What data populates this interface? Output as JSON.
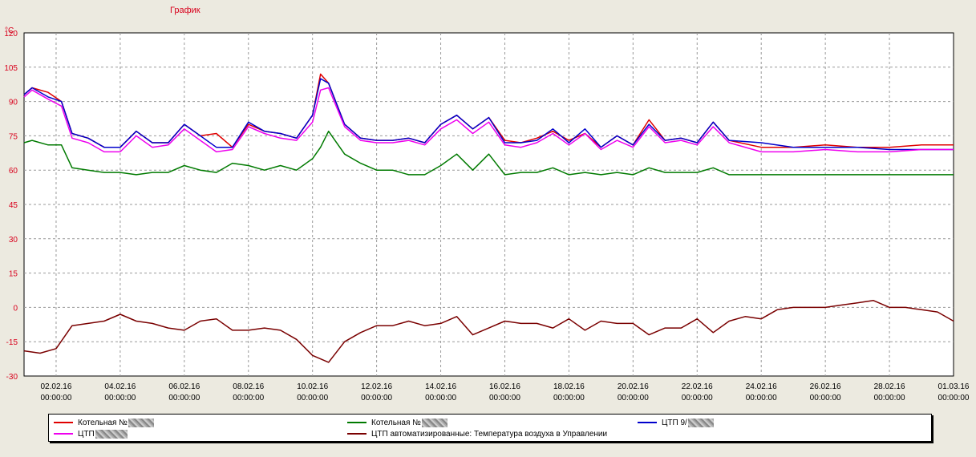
{
  "header": {
    "title": "График",
    "unit": "°С"
  },
  "chart_data": {
    "type": "line",
    "title": "График",
    "ylabel": "°С",
    "ylim": [
      -30,
      120
    ],
    "yticks": [
      120,
      105,
      90,
      75,
      60,
      45,
      30,
      15,
      0,
      -15,
      -30
    ],
    "xlim": [
      "01.02.16 00:00",
      "01.03.16 00:00"
    ],
    "xticks": [
      {
        "date": "02.02.16",
        "time": "00:00:00"
      },
      {
        "date": "04.02.16",
        "time": "00:00:00"
      },
      {
        "date": "06.02.16",
        "time": "00:00:00"
      },
      {
        "date": "08.02.16",
        "time": "00:00:00"
      },
      {
        "date": "10.02.16",
        "time": "00:00:00"
      },
      {
        "date": "12.02.16",
        "time": "00:00:00"
      },
      {
        "date": "14.02.16",
        "time": "00:00:00"
      },
      {
        "date": "16.02.16",
        "time": "00:00:00"
      },
      {
        "date": "18.02.16",
        "time": "00:00:00"
      },
      {
        "date": "20.02.16",
        "time": "00:00:00"
      },
      {
        "date": "22.02.16",
        "time": "00:00:00"
      },
      {
        "date": "24.02.16",
        "time": "00:00:00"
      },
      {
        "date": "26.02.16",
        "time": "00:00:00"
      },
      {
        "date": "28.02.16",
        "time": "00:00:00"
      },
      {
        "date": "01.03.16",
        "time": "00:00:00"
      }
    ],
    "grid": true,
    "legend_position": "bottom",
    "series": [
      {
        "name": "Котельная №",
        "color": "#e00000",
        "x": [
          "01.02.16 00:00",
          "01.02.16 06:00",
          "01.02.16 18:00",
          "02.02.16 04:00",
          "02.02.16 12:00",
          "03.02.16 00:00",
          "03.02.16 12:00",
          "04.02.16 00:00",
          "04.02.16 12:00",
          "05.02.16 00:00",
          "05.02.16 12:00",
          "06.02.16 00:00",
          "06.02.16 12:00",
          "07.02.16 00:00",
          "07.02.16 12:00",
          "08.02.16 00:00",
          "08.02.16 12:00",
          "09.02.16 00:00",
          "09.02.16 12:00",
          "10.02.16 00:00",
          "10.02.16 06:00",
          "10.02.16 12:00",
          "11.02.16 00:00",
          "11.02.16 12:00",
          "12.02.16 00:00",
          "12.02.16 12:00",
          "13.02.16 00:00",
          "13.02.16 12:00",
          "14.02.16 00:00",
          "14.02.16 12:00",
          "15.02.16 00:00",
          "15.02.16 12:00",
          "16.02.16 00:00",
          "16.02.16 12:00",
          "17.02.16 00:00",
          "17.02.16 12:00",
          "18.02.16 00:00",
          "18.02.16 12:00",
          "19.02.16 00:00",
          "19.02.16 12:00",
          "20.02.16 00:00",
          "20.02.16 12:00",
          "21.02.16 00:00",
          "21.02.16 12:00",
          "22.02.16 00:00",
          "22.02.16 12:00",
          "23.02.16 00:00",
          "24.02.16 00:00",
          "25.02.16 00:00",
          "26.02.16 00:00",
          "27.02.16 00:00",
          "28.02.16 00:00",
          "29.02.16 00:00",
          "01.03.16 00:00"
        ],
        "y": [
          93,
          96,
          94,
          90,
          76,
          74,
          70,
          70,
          77,
          72,
          72,
          80,
          75,
          76,
          70,
          80,
          77,
          76,
          74,
          84,
          102,
          98,
          80,
          74,
          73,
          73,
          74,
          72,
          80,
          84,
          78,
          83,
          73,
          72,
          74,
          77,
          73,
          76,
          70,
          75,
          71,
          82,
          73,
          74,
          72,
          81,
          73,
          70,
          70,
          71,
          70,
          70,
          71,
          71
        ]
      },
      {
        "name": "Котельная №",
        "color": "#007a00",
        "x": [
          "01.02.16 00:00",
          "01.02.16 06:00",
          "01.02.16 18:00",
          "02.02.16 04:00",
          "02.02.16 12:00",
          "03.02.16 00:00",
          "03.02.16 12:00",
          "04.02.16 00:00",
          "04.02.16 12:00",
          "05.02.16 00:00",
          "05.02.16 12:00",
          "06.02.16 00:00",
          "06.02.16 12:00",
          "07.02.16 00:00",
          "07.02.16 12:00",
          "08.02.16 00:00",
          "08.02.16 12:00",
          "09.02.16 00:00",
          "09.02.16 12:00",
          "10.02.16 00:00",
          "10.02.16 06:00",
          "10.02.16 12:00",
          "11.02.16 00:00",
          "11.02.16 12:00",
          "12.02.16 00:00",
          "12.02.16 12:00",
          "13.02.16 00:00",
          "13.02.16 12:00",
          "14.02.16 00:00",
          "14.02.16 12:00",
          "15.02.16 00:00",
          "15.02.16 12:00",
          "16.02.16 00:00",
          "16.02.16 12:00",
          "17.02.16 00:00",
          "17.02.16 12:00",
          "18.02.16 00:00",
          "18.02.16 12:00",
          "19.02.16 00:00",
          "19.02.16 12:00",
          "20.02.16 00:00",
          "20.02.16 12:00",
          "21.02.16 00:00",
          "21.02.16 12:00",
          "22.02.16 00:00",
          "22.02.16 12:00",
          "23.02.16 00:00",
          "24.02.16 00:00",
          "25.02.16 00:00",
          "26.02.16 00:00",
          "27.02.16 00:00",
          "28.02.16 00:00",
          "29.02.16 00:00",
          "01.03.16 00:00"
        ],
        "y": [
          72,
          73,
          71,
          71,
          61,
          60,
          59,
          59,
          58,
          59,
          59,
          62,
          60,
          59,
          63,
          62,
          60,
          62,
          60,
          65,
          70,
          77,
          67,
          63,
          60,
          60,
          58,
          58,
          62,
          67,
          60,
          67,
          58,
          59,
          59,
          61,
          58,
          59,
          58,
          59,
          58,
          61,
          59,
          59,
          59,
          61,
          58,
          58,
          58,
          58,
          58,
          58,
          58,
          58
        ]
      },
      {
        "name": "ЦТП  9/",
        "color": "#0000cc",
        "x": [
          "01.02.16 00:00",
          "01.02.16 06:00",
          "01.02.16 18:00",
          "02.02.16 04:00",
          "02.02.16 12:00",
          "03.02.16 00:00",
          "03.02.16 12:00",
          "04.02.16 00:00",
          "04.02.16 12:00",
          "05.02.16 00:00",
          "05.02.16 12:00",
          "06.02.16 00:00",
          "06.02.16 12:00",
          "07.02.16 00:00",
          "07.02.16 12:00",
          "08.02.16 00:00",
          "08.02.16 12:00",
          "09.02.16 00:00",
          "09.02.16 12:00",
          "10.02.16 00:00",
          "10.02.16 06:00",
          "10.02.16 12:00",
          "11.02.16 00:00",
          "11.02.16 12:00",
          "12.02.16 00:00",
          "12.02.16 12:00",
          "13.02.16 00:00",
          "13.02.16 12:00",
          "14.02.16 00:00",
          "14.02.16 12:00",
          "15.02.16 00:00",
          "15.02.16 12:00",
          "16.02.16 00:00",
          "16.02.16 12:00",
          "17.02.16 00:00",
          "17.02.16 12:00",
          "18.02.16 00:00",
          "18.02.16 12:00",
          "19.02.16 00:00",
          "19.02.16 12:00",
          "20.02.16 00:00",
          "20.02.16 12:00",
          "21.02.16 00:00",
          "21.02.16 12:00",
          "22.02.16 00:00",
          "22.02.16 12:00",
          "23.02.16 00:00",
          "24.02.16 00:00",
          "25.02.16 00:00",
          "26.02.16 00:00",
          "27.02.16 00:00",
          "28.02.16 00:00",
          "29.02.16 00:00",
          "01.03.16 00:00"
        ],
        "y": [
          93,
          96,
          92,
          90,
          76,
          74,
          70,
          70,
          77,
          72,
          72,
          80,
          75,
          70,
          70,
          81,
          77,
          76,
          74,
          84,
          100,
          98,
          80,
          74,
          73,
          73,
          74,
          72,
          80,
          84,
          78,
          83,
          72,
          72,
          73,
          78,
          72,
          78,
          70,
          75,
          71,
          80,
          73,
          74,
          72,
          81,
          73,
          72,
          70,
          70,
          70,
          69,
          69,
          69
        ]
      },
      {
        "name": "ЦТП ",
        "color": "#ee00ee",
        "x": [
          "01.02.16 00:00",
          "01.02.16 06:00",
          "01.02.16 18:00",
          "02.02.16 04:00",
          "02.02.16 12:00",
          "03.02.16 00:00",
          "03.02.16 12:00",
          "04.02.16 00:00",
          "04.02.16 12:00",
          "05.02.16 00:00",
          "05.02.16 12:00",
          "06.02.16 00:00",
          "06.02.16 12:00",
          "07.02.16 00:00",
          "07.02.16 12:00",
          "08.02.16 00:00",
          "08.02.16 12:00",
          "09.02.16 00:00",
          "09.02.16 12:00",
          "10.02.16 00:00",
          "10.02.16 06:00",
          "10.02.16 12:00",
          "11.02.16 00:00",
          "11.02.16 12:00",
          "12.02.16 00:00",
          "12.02.16 12:00",
          "13.02.16 00:00",
          "13.02.16 12:00",
          "14.02.16 00:00",
          "14.02.16 12:00",
          "15.02.16 00:00",
          "15.02.16 12:00",
          "16.02.16 00:00",
          "16.02.16 12:00",
          "17.02.16 00:00",
          "17.02.16 12:00",
          "18.02.16 00:00",
          "18.02.16 12:00",
          "19.02.16 00:00",
          "19.02.16 12:00",
          "20.02.16 00:00",
          "20.02.16 12:00",
          "21.02.16 00:00",
          "21.02.16 12:00",
          "22.02.16 00:00",
          "22.02.16 12:00",
          "23.02.16 00:00",
          "24.02.16 00:00",
          "25.02.16 00:00",
          "26.02.16 00:00",
          "27.02.16 00:00",
          "28.02.16 00:00",
          "29.02.16 00:00",
          "01.03.16 00:00"
        ],
        "y": [
          92,
          95,
          91,
          88,
          74,
          72,
          68,
          68,
          75,
          70,
          71,
          78,
          73,
          68,
          69,
          79,
          76,
          74,
          73,
          81,
          95,
          96,
          79,
          73,
          72,
          72,
          73,
          71,
          78,
          82,
          76,
          81,
          71,
          70,
          72,
          76,
          71,
          76,
          69,
          73,
          70,
          79,
          72,
          73,
          71,
          79,
          72,
          68,
          68,
          69,
          68,
          68,
          69,
          69
        ]
      },
      {
        "name": "ЦТП автоматизированные: Температура воздуха в Управлении",
        "color": "#7a0000",
        "x": [
          "01.02.16 00:00",
          "01.02.16 12:00",
          "02.02.16 00:00",
          "02.02.16 12:00",
          "03.02.16 00:00",
          "03.02.16 12:00",
          "04.02.16 00:00",
          "04.02.16 12:00",
          "05.02.16 00:00",
          "05.02.16 12:00",
          "06.02.16 00:00",
          "06.02.16 12:00",
          "07.02.16 00:00",
          "07.02.16 12:00",
          "08.02.16 00:00",
          "08.02.16 12:00",
          "09.02.16 00:00",
          "09.02.16 12:00",
          "10.02.16 00:00",
          "10.02.16 12:00",
          "11.02.16 00:00",
          "11.02.16 12:00",
          "12.02.16 00:00",
          "12.02.16 12:00",
          "13.02.16 00:00",
          "13.02.16 12:00",
          "14.02.16 00:00",
          "14.02.16 12:00",
          "15.02.16 00:00",
          "15.02.16 12:00",
          "16.02.16 00:00",
          "16.02.16 12:00",
          "17.02.16 00:00",
          "17.02.16 12:00",
          "18.02.16 00:00",
          "18.02.16 12:00",
          "19.02.16 00:00",
          "19.02.16 12:00",
          "20.02.16 00:00",
          "20.02.16 12:00",
          "21.02.16 00:00",
          "21.02.16 12:00",
          "22.02.16 00:00",
          "22.02.16 12:00",
          "23.02.16 00:00",
          "23.02.16 12:00",
          "24.02.16 00:00",
          "24.02.16 12:00",
          "25.02.16 00:00",
          "25.02.16 12:00",
          "26.02.16 00:00",
          "26.02.16 12:00",
          "27.02.16 00:00",
          "27.02.16 12:00",
          "28.02.16 00:00",
          "28.02.16 12:00",
          "29.02.16 00:00",
          "29.02.16 12:00",
          "01.03.16 00:00"
        ],
        "y": [
          -19,
          -20,
          -18,
          -8,
          -7,
          -6,
          -3,
          -6,
          -7,
          -9,
          -10,
          -6,
          -5,
          -10,
          -10,
          -9,
          -10,
          -14,
          -21,
          -24,
          -15,
          -11,
          -8,
          -8,
          -6,
          -8,
          -7,
          -4,
          -12,
          -9,
          -6,
          -7,
          -7,
          -9,
          -5,
          -10,
          -6,
          -7,
          -7,
          -12,
          -9,
          -9,
          -5,
          -11,
          -6,
          -4,
          -5,
          -1,
          0,
          0,
          0,
          1,
          2,
          3,
          0,
          0,
          -1,
          -2,
          -6
        ]
      }
    ]
  },
  "legend": {
    "items": [
      {
        "label": "Котельная №",
        "color": "#e00000"
      },
      {
        "label": "Котельная №",
        "color": "#007a00"
      },
      {
        "label": "ЦТП  9/",
        "color": "#0000cc"
      },
      {
        "label": "ЦТП ",
        "color": "#ee00ee"
      },
      {
        "label": "ЦТП автоматизированные: Температура воздуха в Управлении",
        "color": "#7a0000"
      }
    ]
  }
}
